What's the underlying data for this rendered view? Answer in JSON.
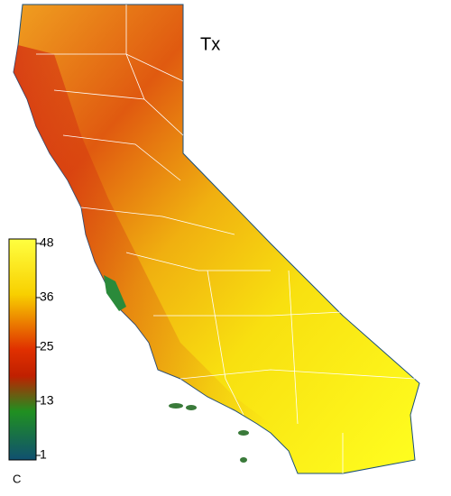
{
  "title": "Tx",
  "colorbar": {
    "range": [
      1,
      48
    ],
    "ticks": [
      48,
      36,
      25,
      13,
      1
    ],
    "unit": "C"
  }
}
